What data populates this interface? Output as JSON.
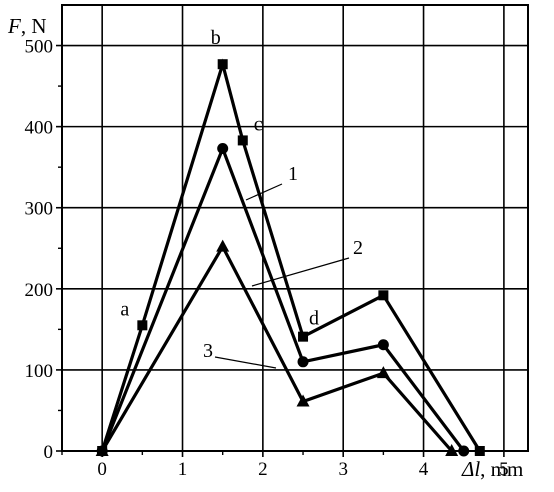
{
  "chart_data": {
    "type": "line",
    "title": "",
    "ylabel_italic": "F",
    "ylabel_rest": ", N",
    "xlabel_italic": "Δl",
    "xlabel_rest": ", mm",
    "xlim": [
      -0.5,
      5.3
    ],
    "ylim": [
      0,
      550
    ],
    "x_ticks": [
      0,
      1,
      2,
      3,
      4,
      5
    ],
    "y_ticks": [
      0,
      100,
      200,
      300,
      400,
      500
    ],
    "grid": true,
    "series": [
      {
        "name": "1",
        "marker": "square",
        "points": [
          [
            0,
            0
          ],
          [
            0.5,
            155
          ],
          [
            1.5,
            477
          ],
          [
            1.75,
            383
          ],
          [
            2.5,
            141
          ],
          [
            3.5,
            192
          ],
          [
            4.7,
            0
          ]
        ]
      },
      {
        "name": "2",
        "marker": "circle",
        "points": [
          [
            0,
            0
          ],
          [
            1.5,
            373
          ],
          [
            2.5,
            110
          ],
          [
            3.5,
            131
          ],
          [
            4.5,
            0
          ]
        ]
      },
      {
        "name": "3",
        "marker": "triangle",
        "points": [
          [
            0,
            0
          ],
          [
            1.5,
            252
          ],
          [
            2.5,
            61
          ],
          [
            3.5,
            96
          ],
          [
            4.35,
            0
          ]
        ]
      }
    ],
    "point_labels": [
      {
        "text": "a",
        "x": 0.5,
        "y": 155
      },
      {
        "text": "b",
        "x": 1.5,
        "y": 477
      },
      {
        "text": "c",
        "x": 1.75,
        "y": 383
      },
      {
        "text": "d",
        "x": 2.5,
        "y": 141
      }
    ]
  }
}
